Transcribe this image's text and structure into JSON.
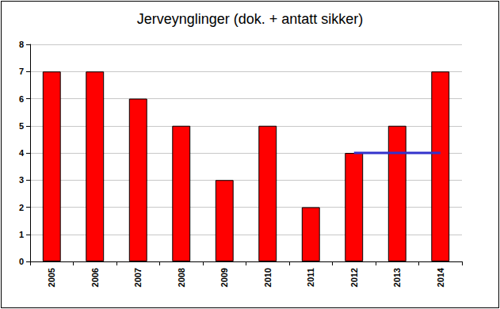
{
  "chart_data": {
    "type": "bar",
    "title": "Jerveynglinger (dok. + antatt sikker)",
    "categories": [
      "2005",
      "2006",
      "2007",
      "2008",
      "2009",
      "2010",
      "2011",
      "2012",
      "2013",
      "2014"
    ],
    "series": [
      {
        "type": "bar",
        "color": "#ff0000",
        "values": [
          7,
          7,
          6,
          5,
          3,
          5,
          2,
          4,
          5,
          7
        ]
      },
      {
        "type": "line",
        "color": "#3333cc",
        "values": [
          null,
          null,
          null,
          null,
          null,
          null,
          null,
          4,
          4,
          4
        ]
      }
    ],
    "ylim": [
      0,
      8
    ],
    "yticks": [
      0,
      1,
      2,
      3,
      4,
      5,
      6,
      7,
      8
    ],
    "grid": true
  }
}
